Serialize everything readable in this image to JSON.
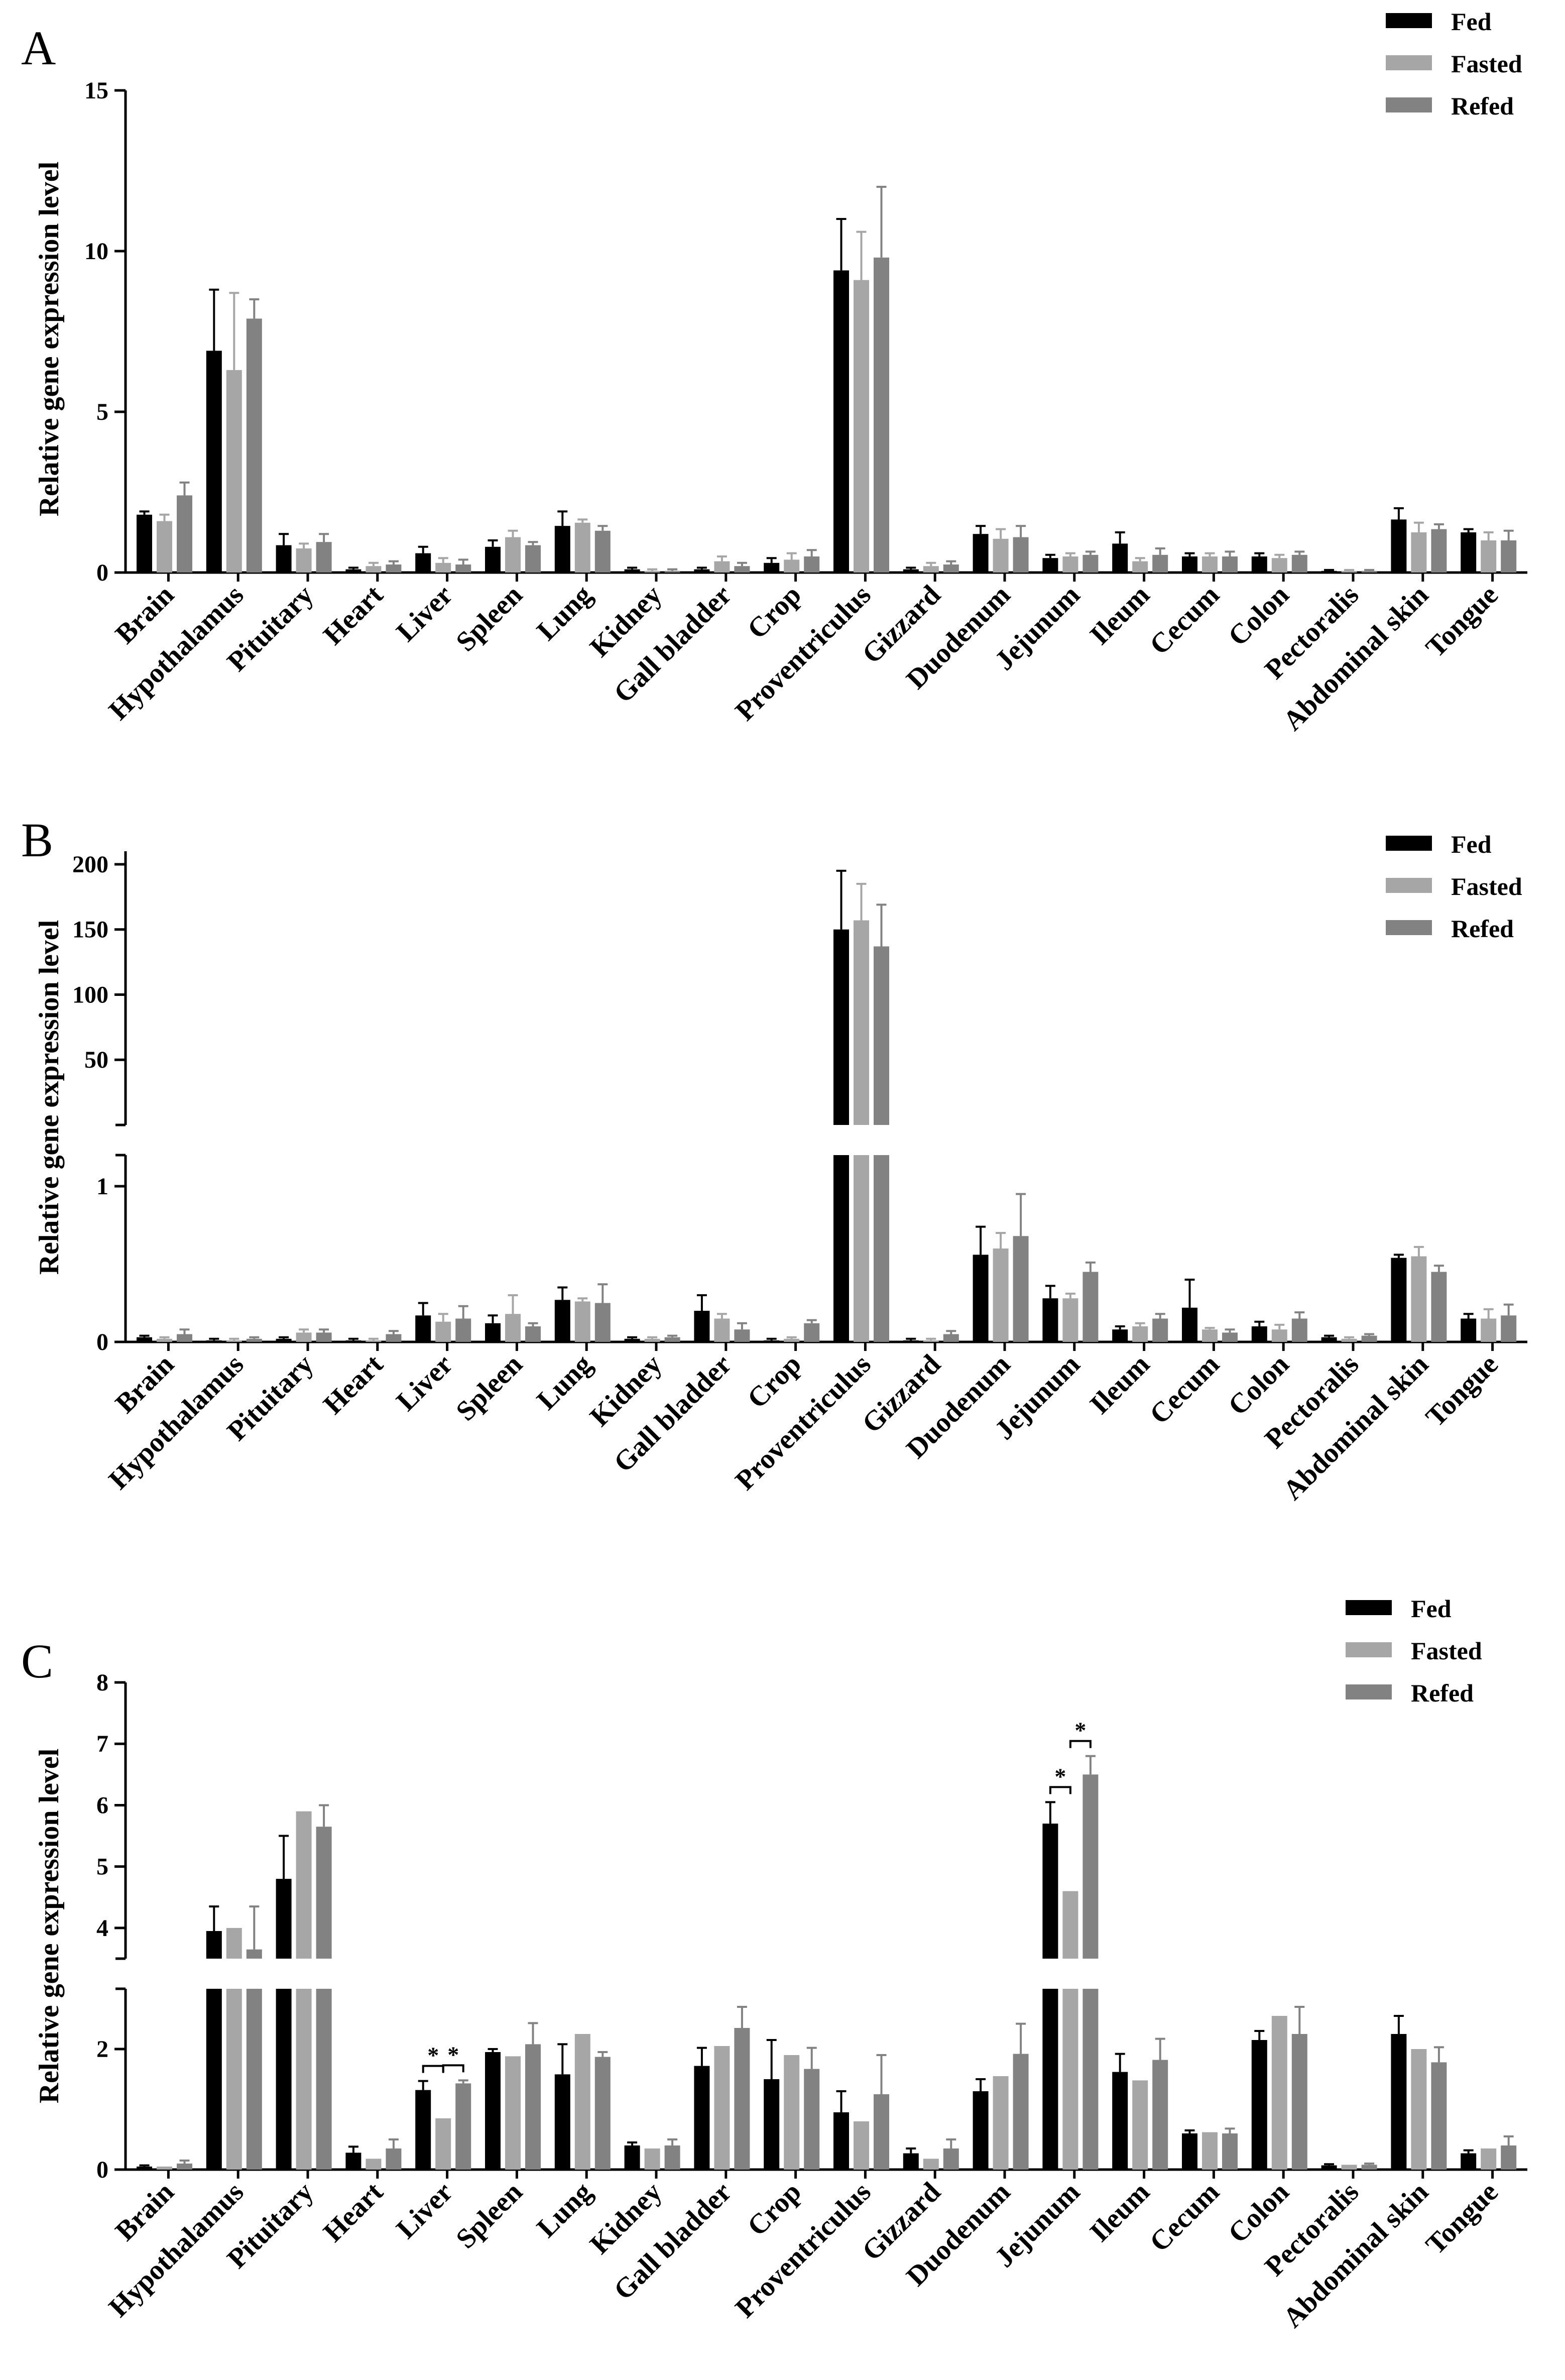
{
  "colors": {
    "fed": "#000000",
    "fasted": "#a6a6a6",
    "refed": "#828282"
  },
  "chart_data": [
    {
      "panel": "A",
      "type": "bar",
      "ylabel": "Relative gene expression level",
      "legend": [
        "Fed",
        "Fasted",
        "Refed"
      ],
      "legend_position": "top-right",
      "categories": [
        "Brain",
        "Hypothalamus",
        "Pituitary",
        "Heart",
        "Liver",
        "Spleen",
        "Lung",
        "Kidney",
        "Gall bladder",
        "Crop",
        "Proventriculus",
        "Gizzard",
        "Duodenum",
        "Jejunum",
        "Ileum",
        "Cecum",
        "Colon",
        "Pectoralis",
        "Abdominal skin",
        "Tongue"
      ],
      "ylim": [
        0,
        15
      ],
      "yticks": [
        "0",
        "5",
        "10",
        "15"
      ],
      "series": [
        {
          "name": "Fed",
          "values": [
            1.8,
            6.9,
            0.85,
            0.1,
            0.6,
            0.8,
            1.45,
            0.1,
            0.1,
            0.3,
            9.4,
            0.1,
            1.2,
            0.45,
            0.9,
            0.5,
            0.5,
            0.05,
            1.65,
            1.25
          ],
          "errors": [
            0.1,
            1.9,
            0.35,
            0.05,
            0.2,
            0.2,
            0.45,
            0.05,
            0.05,
            0.15,
            1.6,
            0.05,
            0.25,
            0.1,
            0.35,
            0.1,
            0.1,
            0.03,
            0.35,
            0.1
          ]
        },
        {
          "name": "Fasted",
          "values": [
            1.6,
            6.3,
            0.75,
            0.2,
            0.3,
            1.1,
            1.55,
            0.05,
            0.35,
            0.4,
            9.1,
            0.2,
            1.05,
            0.5,
            0.35,
            0.5,
            0.45,
            0.05,
            1.25,
            1.0
          ],
          "errors": [
            0.2,
            2.4,
            0.15,
            0.1,
            0.15,
            0.2,
            0.1,
            0.05,
            0.15,
            0.2,
            1.5,
            0.1,
            0.3,
            0.1,
            0.1,
            0.1,
            0.1,
            0.03,
            0.3,
            0.25
          ]
        },
        {
          "name": "Refed",
          "values": [
            2.4,
            7.9,
            0.95,
            0.25,
            0.25,
            0.85,
            1.3,
            0.05,
            0.2,
            0.5,
            9.8,
            0.25,
            1.1,
            0.55,
            0.55,
            0.5,
            0.55,
            0.05,
            1.35,
            1.0
          ],
          "errors": [
            0.4,
            0.6,
            0.25,
            0.1,
            0.15,
            0.1,
            0.15,
            0.05,
            0.1,
            0.2,
            2.2,
            0.1,
            0.35,
            0.1,
            0.2,
            0.15,
            0.1,
            0.03,
            0.15,
            0.3
          ]
        }
      ],
      "annotations": []
    },
    {
      "panel": "B",
      "type": "bar",
      "ylabel": "Relative gene expression level",
      "legend": [
        "Fed",
        "Fasted",
        "Refed"
      ],
      "legend_position": "top-right",
      "categories": [
        "Brain",
        "Hypothalamus",
        "Pituitary",
        "Heart",
        "Liver",
        "Spleen",
        "Lung",
        "Kidney",
        "Gall bladder",
        "Crop",
        "Proventriculus",
        "Gizzard",
        "Duodenum",
        "Jejunum",
        "Ileum",
        "Cecum",
        "Colon",
        "Pectoralis",
        "Abdominal skin",
        "Tongue"
      ],
      "broken_axis": {
        "lower": [
          0,
          1.2
        ],
        "upper": [
          0,
          210
        ]
      },
      "yticks_lower": [
        "0",
        "1"
      ],
      "yticks_upper": [
        "50",
        "100",
        "150",
        "200"
      ],
      "series": [
        {
          "name": "Fed",
          "values": [
            0.03,
            0.01,
            0.02,
            0.01,
            0.17,
            0.12,
            0.27,
            0.02,
            0.2,
            0.01,
            150,
            0.01,
            0.56,
            0.28,
            0.08,
            0.22,
            0.1,
            0.03,
            0.54,
            0.15
          ],
          "errors": [
            0.01,
            0.01,
            0.01,
            0.01,
            0.08,
            0.05,
            0.08,
            0.01,
            0.1,
            0.01,
            45,
            0.01,
            0.18,
            0.08,
            0.02,
            0.18,
            0.03,
            0.01,
            0.02,
            0.03
          ]
        },
        {
          "name": "Fasted",
          "values": [
            0.02,
            0.01,
            0.06,
            0.01,
            0.13,
            0.18,
            0.26,
            0.02,
            0.15,
            0.02,
            157,
            0.01,
            0.6,
            0.28,
            0.1,
            0.08,
            0.08,
            0.02,
            0.55,
            0.15
          ],
          "errors": [
            0.01,
            0.01,
            0.02,
            0.01,
            0.05,
            0.12,
            0.02,
            0.01,
            0.03,
            0.01,
            28,
            0.01,
            0.1,
            0.03,
            0.02,
            0.01,
            0.03,
            0.01,
            0.06,
            0.06
          ]
        },
        {
          "name": "Refed",
          "values": [
            0.05,
            0.02,
            0.06,
            0.05,
            0.15,
            0.1,
            0.25,
            0.03,
            0.08,
            0.12,
            137,
            0.05,
            0.68,
            0.45,
            0.15,
            0.06,
            0.15,
            0.04,
            0.45,
            0.17
          ],
          "errors": [
            0.03,
            0.01,
            0.02,
            0.02,
            0.08,
            0.02,
            0.12,
            0.01,
            0.04,
            0.02,
            32,
            0.02,
            0.27,
            0.06,
            0.03,
            0.02,
            0.04,
            0.01,
            0.04,
            0.07
          ]
        }
      ],
      "annotations": []
    },
    {
      "panel": "C",
      "type": "bar",
      "ylabel": "Relative gene expression level",
      "legend": [
        "Fed",
        "Fasted",
        "Refed"
      ],
      "legend_position": "top-right",
      "categories": [
        "Brain",
        "Hypothalamus",
        "Pituitary",
        "Heart",
        "Liver",
        "Spleen",
        "Lung",
        "Kidney",
        "Gall bladder",
        "Crop",
        "Proventriculus",
        "Gizzard",
        "Duodenum",
        "Jejunum",
        "Ileum",
        "Cecum",
        "Colon",
        "Pectoralis",
        "Abdominal skin",
        "Tongue"
      ],
      "broken_axis": {
        "lower": [
          0,
          3
        ],
        "upper": [
          3.5,
          8
        ]
      },
      "yticks_lower": [
        "0",
        "2"
      ],
      "yticks_upper": [
        "4",
        "5",
        "6",
        "7",
        "8"
      ],
      "series": [
        {
          "name": "Fed",
          "values": [
            0.05,
            3.95,
            4.8,
            0.28,
            1.32,
            1.95,
            1.58,
            0.4,
            1.72,
            1.5,
            0.95,
            0.27,
            1.3,
            5.7,
            1.62,
            0.6,
            2.15,
            0.07,
            2.25,
            0.27
          ],
          "errors": [
            0.02,
            0.4,
            0.7,
            0.1,
            0.15,
            0.05,
            0.5,
            0.05,
            0.3,
            0.65,
            0.35,
            0.08,
            0.2,
            0.35,
            0.3,
            0.05,
            0.15,
            0.02,
            0.3,
            0.05
          ]
        },
        {
          "name": "Fasted",
          "values": [
            0.05,
            4.0,
            5.9,
            0.18,
            0.85,
            1.88,
            2.25,
            0.35,
            2.05,
            1.9,
            0.8,
            0.18,
            1.55,
            4.6,
            1.48,
            0.62,
            2.55,
            0.08,
            2.0,
            0.35
          ]
        },
        {
          "name": "Refed",
          "values": [
            0.1,
            3.65,
            5.65,
            0.35,
            1.43,
            2.08,
            1.87,
            0.4,
            2.35,
            1.67,
            1.25,
            0.35,
            1.92,
            6.5,
            1.82,
            0.6,
            2.25,
            0.08,
            1.78,
            0.4
          ],
          "errors": [
            0.05,
            0.7,
            0.35,
            0.15,
            0.05,
            0.35,
            0.08,
            0.1,
            0.35,
            0.35,
            0.65,
            0.15,
            0.5,
            0.3,
            0.35,
            0.08,
            0.45,
            0.02,
            0.25,
            0.15
          ]
        }
      ],
      "annotations": [
        {
          "category": "Liver",
          "between": [
            "Fed",
            "Fasted"
          ],
          "text": "*"
        },
        {
          "category": "Liver",
          "between": [
            "Fasted",
            "Refed"
          ],
          "text": "*"
        },
        {
          "category": "Jejunum",
          "between": [
            "Fed",
            "Fasted"
          ],
          "text": "*"
        },
        {
          "category": "Jejunum",
          "between": [
            "Fasted",
            "Refed"
          ],
          "text": "*"
        }
      ]
    }
  ]
}
